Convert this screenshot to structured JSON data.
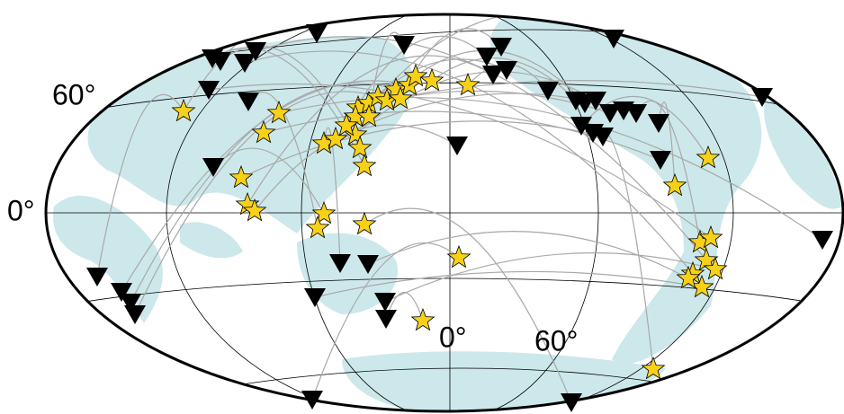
{
  "labels": {
    "lat_60": "60°",
    "lat_0": "0°",
    "lon_0": "0°",
    "lon_60": "60°"
  }
}
